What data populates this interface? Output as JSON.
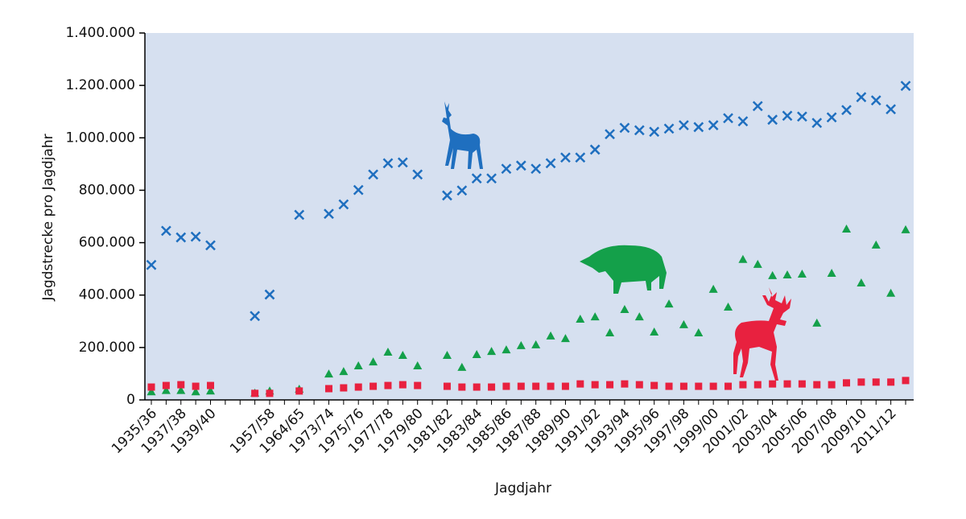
{
  "chart_data": {
    "type": "scatter",
    "y_label": "Jagdstrecke pro Jagdjahr",
    "x_label": "Jagdjahr",
    "categories": [
      "1935/36",
      null,
      "1937/38",
      null,
      "1939/40",
      null,
      null,
      null,
      "1957/58",
      null,
      "1964/65",
      null,
      "1973/74",
      null,
      "1975/76",
      null,
      "1977/78",
      null,
      "1979/80",
      null,
      "1981/82",
      null,
      "1983/84",
      null,
      "1985/86",
      null,
      "1987/88",
      null,
      "1989/90",
      null,
      "1991/92",
      null,
      "1993/94",
      null,
      "1995/96",
      null,
      "1997/98",
      null,
      "1999/00",
      null,
      "2001/02",
      null,
      "2003/04",
      null,
      "2005/06",
      null,
      "2007/08",
      null,
      "2009/10",
      null,
      "2011/12",
      null
    ],
    "series": [
      {
        "color": "#1f6fbf",
        "marker": "x",
        "values": [
          515000,
          645000,
          620000,
          623000,
          590000,
          null,
          null,
          320000,
          402000,
          null,
          706000,
          null,
          710000,
          746000,
          801000,
          860000,
          903000,
          906000,
          860000,
          null,
          780000,
          799000,
          845000,
          845000,
          882000,
          894000,
          882000,
          903000,
          925000,
          925000,
          955000,
          1014000,
          1038000,
          1029000,
          1023000,
          1035000,
          1048000,
          1041000,
          1048000,
          1075000,
          1063000,
          1121000,
          1069000,
          1084000,
          1081000,
          1057000,
          1078000,
          1106000,
          1155000,
          1143000,
          1109000,
          1198000
        ]
      },
      {
        "color": "#14a04a",
        "marker": "triangle",
        "values": [
          30000,
          35000,
          35000,
          30000,
          33000,
          null,
          null,
          25000,
          33000,
          null,
          40000,
          null,
          98000,
          107000,
          129000,
          144000,
          181000,
          169000,
          129000,
          null,
          169000,
          123000,
          172000,
          184000,
          190000,
          206000,
          209000,
          243000,
          233000,
          307000,
          316000,
          255000,
          344000,
          316000,
          258000,
          365000,
          286000,
          255000,
          421000,
          353000,
          535000,
          516000,
          473000,
          476000,
          479000,
          292000,
          482000,
          651000,
          445000,
          590000,
          406000,
          648000
        ]
      },
      {
        "color": "#e8213f",
        "marker": "square",
        "values": [
          49000,
          55000,
          58000,
          52000,
          55000,
          null,
          null,
          25000,
          25000,
          null,
          34000,
          null,
          43000,
          46000,
          49000,
          52000,
          55000,
          58000,
          55000,
          null,
          52000,
          49000,
          49000,
          49000,
          52000,
          52000,
          52000,
          52000,
          52000,
          61000,
          58000,
          58000,
          61000,
          58000,
          55000,
          52000,
          52000,
          52000,
          52000,
          52000,
          58000,
          58000,
          61000,
          61000,
          61000,
          58000,
          58000,
          65000,
          68000,
          68000,
          68000,
          74000
        ]
      }
    ],
    "ylim": [
      0,
      1400000
    ],
    "yticks": [
      0,
      {
        "value": 200000,
        "label": "200.000"
      },
      {
        "value": 400000,
        "label": "400.000"
      },
      {
        "value": 600000,
        "label": "600.000"
      },
      {
        "value": 800000,
        "label": "800.000"
      },
      {
        "value": 1000000,
        "label": "1.000.000"
      },
      {
        "value": 1200000,
        "label": "1.200.000"
      },
      {
        "value": 1400000,
        "label": "1.400.000"
      }
    ],
    "plot_background": "#d6e0f0"
  }
}
